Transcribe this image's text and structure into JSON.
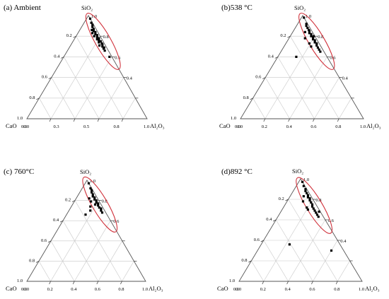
{
  "chart_data": [
    {
      "type": "ternary-scatter",
      "title": "(a) Ambient",
      "vertices": {
        "top": "SiO₂",
        "left": "CaO",
        "right": "Al₂O₃"
      },
      "top_ticks": [
        "1.0",
        "0.8",
        "0.6",
        "0.4"
      ],
      "left_ticks": [
        "0.2",
        "0.4",
        "0.6",
        "0.8",
        "1.0"
      ],
      "bottom_ticks": [
        "0.0",
        "0.0",
        "0.3",
        "0.5",
        "0.8",
        "1.0"
      ],
      "grid": true,
      "ellipse": {
        "color": "#d0303a",
        "center": {
          "SiO2": 0.75,
          "Al2O3": 0.25
        }
      },
      "points": [
        {
          "SiO2": 0.97,
          "Al2O3": 0.03
        },
        {
          "SiO2": 0.93,
          "Al2O3": 0.06
        },
        {
          "SiO2": 0.91,
          "Al2O3": 0.08
        },
        {
          "SiO2": 0.89,
          "Al2O3": 0.09
        },
        {
          "SiO2": 0.87,
          "Al2O3": 0.11
        },
        {
          "SiO2": 0.85,
          "Al2O3": 0.12
        },
        {
          "SiO2": 0.84,
          "Al2O3": 0.14
        },
        {
          "SiO2": 0.82,
          "Al2O3": 0.15
        },
        {
          "SiO2": 0.81,
          "Al2O3": 0.17
        },
        {
          "SiO2": 0.79,
          "Al2O3": 0.18
        },
        {
          "SiO2": 0.78,
          "Al2O3": 0.2
        },
        {
          "SiO2": 0.76,
          "Al2O3": 0.21
        },
        {
          "SiO2": 0.75,
          "Al2O3": 0.23
        },
        {
          "SiO2": 0.73,
          "Al2O3": 0.25
        },
        {
          "SiO2": 0.72,
          "Al2O3": 0.26
        },
        {
          "SiO2": 0.7,
          "Al2O3": 0.27
        },
        {
          "SiO2": 0.68,
          "Al2O3": 0.29
        },
        {
          "SiO2": 0.66,
          "Al2O3": 0.31
        },
        {
          "SiO2": 0.6,
          "Al2O3": 0.38
        },
        {
          "SiO2": 0.86,
          "Al2O3": 0.1
        },
        {
          "SiO2": 0.8,
          "Al2O3": 0.15
        },
        {
          "SiO2": 0.77,
          "Al2O3": 0.19
        },
        {
          "SiO2": 0.74,
          "Al2O3": 0.22
        },
        {
          "SiO2": 0.71,
          "Al2O3": 0.24
        },
        {
          "SiO2": 0.83,
          "Al2O3": 0.12
        },
        {
          "SiO2": 0.69,
          "Al2O3": 0.29
        }
      ]
    },
    {
      "type": "ternary-scatter",
      "title": "(b)538 °C",
      "vertices": {
        "top": "SiO₂",
        "left": "CaO",
        "right": "Al₂O₃"
      },
      "top_ticks": [
        "1.0",
        "0.8",
        "0.6",
        "0.4"
      ],
      "left_ticks": [
        "0.2",
        "0.4",
        "0.6",
        "0.8",
        "1.0"
      ],
      "bottom_ticks": [
        "0.0",
        "0.0",
        "0.2",
        "0.4",
        "0.6",
        "0.8",
        "1.0"
      ],
      "grid": true,
      "ellipse": {
        "color": "#d0303a",
        "center": {
          "SiO2": 0.75,
          "Al2O3": 0.24
        }
      },
      "points": [
        {
          "SiO2": 0.98,
          "Al2O3": 0.02
        },
        {
          "SiO2": 0.92,
          "Al2O3": 0.07
        },
        {
          "SiO2": 0.9,
          "Al2O3": 0.08
        },
        {
          "SiO2": 0.88,
          "Al2O3": 0.1
        },
        {
          "SiO2": 0.86,
          "Al2O3": 0.12
        },
        {
          "SiO2": 0.85,
          "Al2O3": 0.13
        },
        {
          "SiO2": 0.83,
          "Al2O3": 0.14
        },
        {
          "SiO2": 0.82,
          "Al2O3": 0.16
        },
        {
          "SiO2": 0.8,
          "Al2O3": 0.17
        },
        {
          "SiO2": 0.79,
          "Al2O3": 0.19
        },
        {
          "SiO2": 0.77,
          "Al2O3": 0.2
        },
        {
          "SiO2": 0.76,
          "Al2O3": 0.22
        },
        {
          "SiO2": 0.74,
          "Al2O3": 0.23
        },
        {
          "SiO2": 0.73,
          "Al2O3": 0.25
        },
        {
          "SiO2": 0.71,
          "Al2O3": 0.26
        },
        {
          "SiO2": 0.69,
          "Al2O3": 0.28
        },
        {
          "SiO2": 0.67,
          "Al2O3": 0.3
        },
        {
          "SiO2": 0.65,
          "Al2O3": 0.32
        },
        {
          "SiO2": 0.78,
          "Al2O3": 0.13
        },
        {
          "SiO2": 0.73,
          "Al2O3": 0.19
        },
        {
          "SiO2": 0.6,
          "Al2O3": 0.15
        },
        {
          "SiO2": 0.84,
          "Al2O3": 0.1
        },
        {
          "SiO2": 0.8,
          "Al2O3": 0.19
        },
        {
          "SiO2": 0.7,
          "Al2O3": 0.22
        }
      ]
    },
    {
      "type": "ternary-scatter",
      "title": "(c) 760°C",
      "vertices": {
        "top": "SiO₂",
        "left": "CaO",
        "right": "Al₂O₃"
      },
      "top_ticks": [
        "1.0",
        "0.8",
        "0.6"
      ],
      "left_ticks": [
        "0.2",
        "0.4",
        "0.6",
        "0.8",
        "1.0"
      ],
      "bottom_ticks": [
        "0.0",
        "0.0",
        "0.2",
        "0.4",
        "0.6",
        "0.8",
        "1.0"
      ],
      "grid": true,
      "ellipse": {
        "color": "#d0303a",
        "center": {
          "SiO2": 0.76,
          "Al2O3": 0.23
        }
      },
      "points": [
        {
          "SiO2": 0.97,
          "Al2O3": 0.03
        },
        {
          "SiO2": 0.92,
          "Al2O3": 0.07
        },
        {
          "SiO2": 0.9,
          "Al2O3": 0.09
        },
        {
          "SiO2": 0.88,
          "Al2O3": 0.1
        },
        {
          "SiO2": 0.86,
          "Al2O3": 0.12
        },
        {
          "SiO2": 0.84,
          "Al2O3": 0.13
        },
        {
          "SiO2": 0.83,
          "Al2O3": 0.15
        },
        {
          "SiO2": 0.81,
          "Al2O3": 0.16
        },
        {
          "SiO2": 0.8,
          "Al2O3": 0.18
        },
        {
          "SiO2": 0.78,
          "Al2O3": 0.19
        },
        {
          "SiO2": 0.77,
          "Al2O3": 0.21
        },
        {
          "SiO2": 0.75,
          "Al2O3": 0.22
        },
        {
          "SiO2": 0.73,
          "Al2O3": 0.24
        },
        {
          "SiO2": 0.72,
          "Al2O3": 0.26
        },
        {
          "SiO2": 0.7,
          "Al2O3": 0.27
        },
        {
          "SiO2": 0.68,
          "Al2O3": 0.29
        },
        {
          "SiO2": 0.74,
          "Al2O3": 0.16
        },
        {
          "SiO2": 0.7,
          "Al2O3": 0.18
        },
        {
          "SiO2": 0.66,
          "Al2O3": 0.16
        },
        {
          "SiO2": 0.79,
          "Al2O3": 0.14
        },
        {
          "SiO2": 0.82,
          "Al2O3": 0.11
        },
        {
          "SiO2": 0.76,
          "Al2O3": 0.19
        }
      ]
    },
    {
      "type": "ternary-scatter",
      "title": "(d)892 °C",
      "vertices": {
        "top": "SiO₂",
        "left": "CaO",
        "right": "Al₂O₃"
      },
      "top_ticks": [
        "1.0",
        "0.8",
        "0.6",
        "0.4"
      ],
      "left_ticks": [
        "0.2",
        "0.4",
        "0.6",
        "0.8",
        "1.0"
      ],
      "bottom_ticks": [
        "0.0",
        "0.0",
        "0.2",
        "0.4",
        "0.6",
        "0.8",
        "1.0"
      ],
      "grid": true,
      "ellipse": {
        "color": "#d0303a",
        "center": {
          "SiO2": 0.74,
          "Al2O3": 0.24
        }
      },
      "points": [
        {
          "SiO2": 0.97,
          "Al2O3": 0.03
        },
        {
          "SiO2": 0.93,
          "Al2O3": 0.06
        },
        {
          "SiO2": 0.9,
          "Al2O3": 0.09
        },
        {
          "SiO2": 0.88,
          "Al2O3": 0.1
        },
        {
          "SiO2": 0.86,
          "Al2O3": 0.12
        },
        {
          "SiO2": 0.84,
          "Al2O3": 0.14
        },
        {
          "SiO2": 0.82,
          "Al2O3": 0.15
        },
        {
          "SiO2": 0.81,
          "Al2O3": 0.17
        },
        {
          "SiO2": 0.79,
          "Al2O3": 0.18
        },
        {
          "SiO2": 0.77,
          "Al2O3": 0.2
        },
        {
          "SiO2": 0.75,
          "Al2O3": 0.22
        },
        {
          "SiO2": 0.73,
          "Al2O3": 0.23
        },
        {
          "SiO2": 0.71,
          "Al2O3": 0.25
        },
        {
          "SiO2": 0.69,
          "Al2O3": 0.27
        },
        {
          "SiO2": 0.67,
          "Al2O3": 0.29
        },
        {
          "SiO2": 0.65,
          "Al2O3": 0.31
        },
        {
          "SiO2": 0.63,
          "Al2O3": 0.33
        },
        {
          "SiO2": 0.78,
          "Al2O3": 0.13
        },
        {
          "SiO2": 0.72,
          "Al2O3": 0.19
        },
        {
          "SiO2": 0.7,
          "Al2O3": 0.21
        },
        {
          "SiO2": 0.36,
          "Al2O3": 0.23
        },
        {
          "SiO2": 0.3,
          "Al2O3": 0.6
        },
        {
          "SiO2": 0.68,
          "Al2O3": 0.31
        },
        {
          "SiO2": 0.83,
          "Al2O3": 0.11
        }
      ]
    }
  ]
}
